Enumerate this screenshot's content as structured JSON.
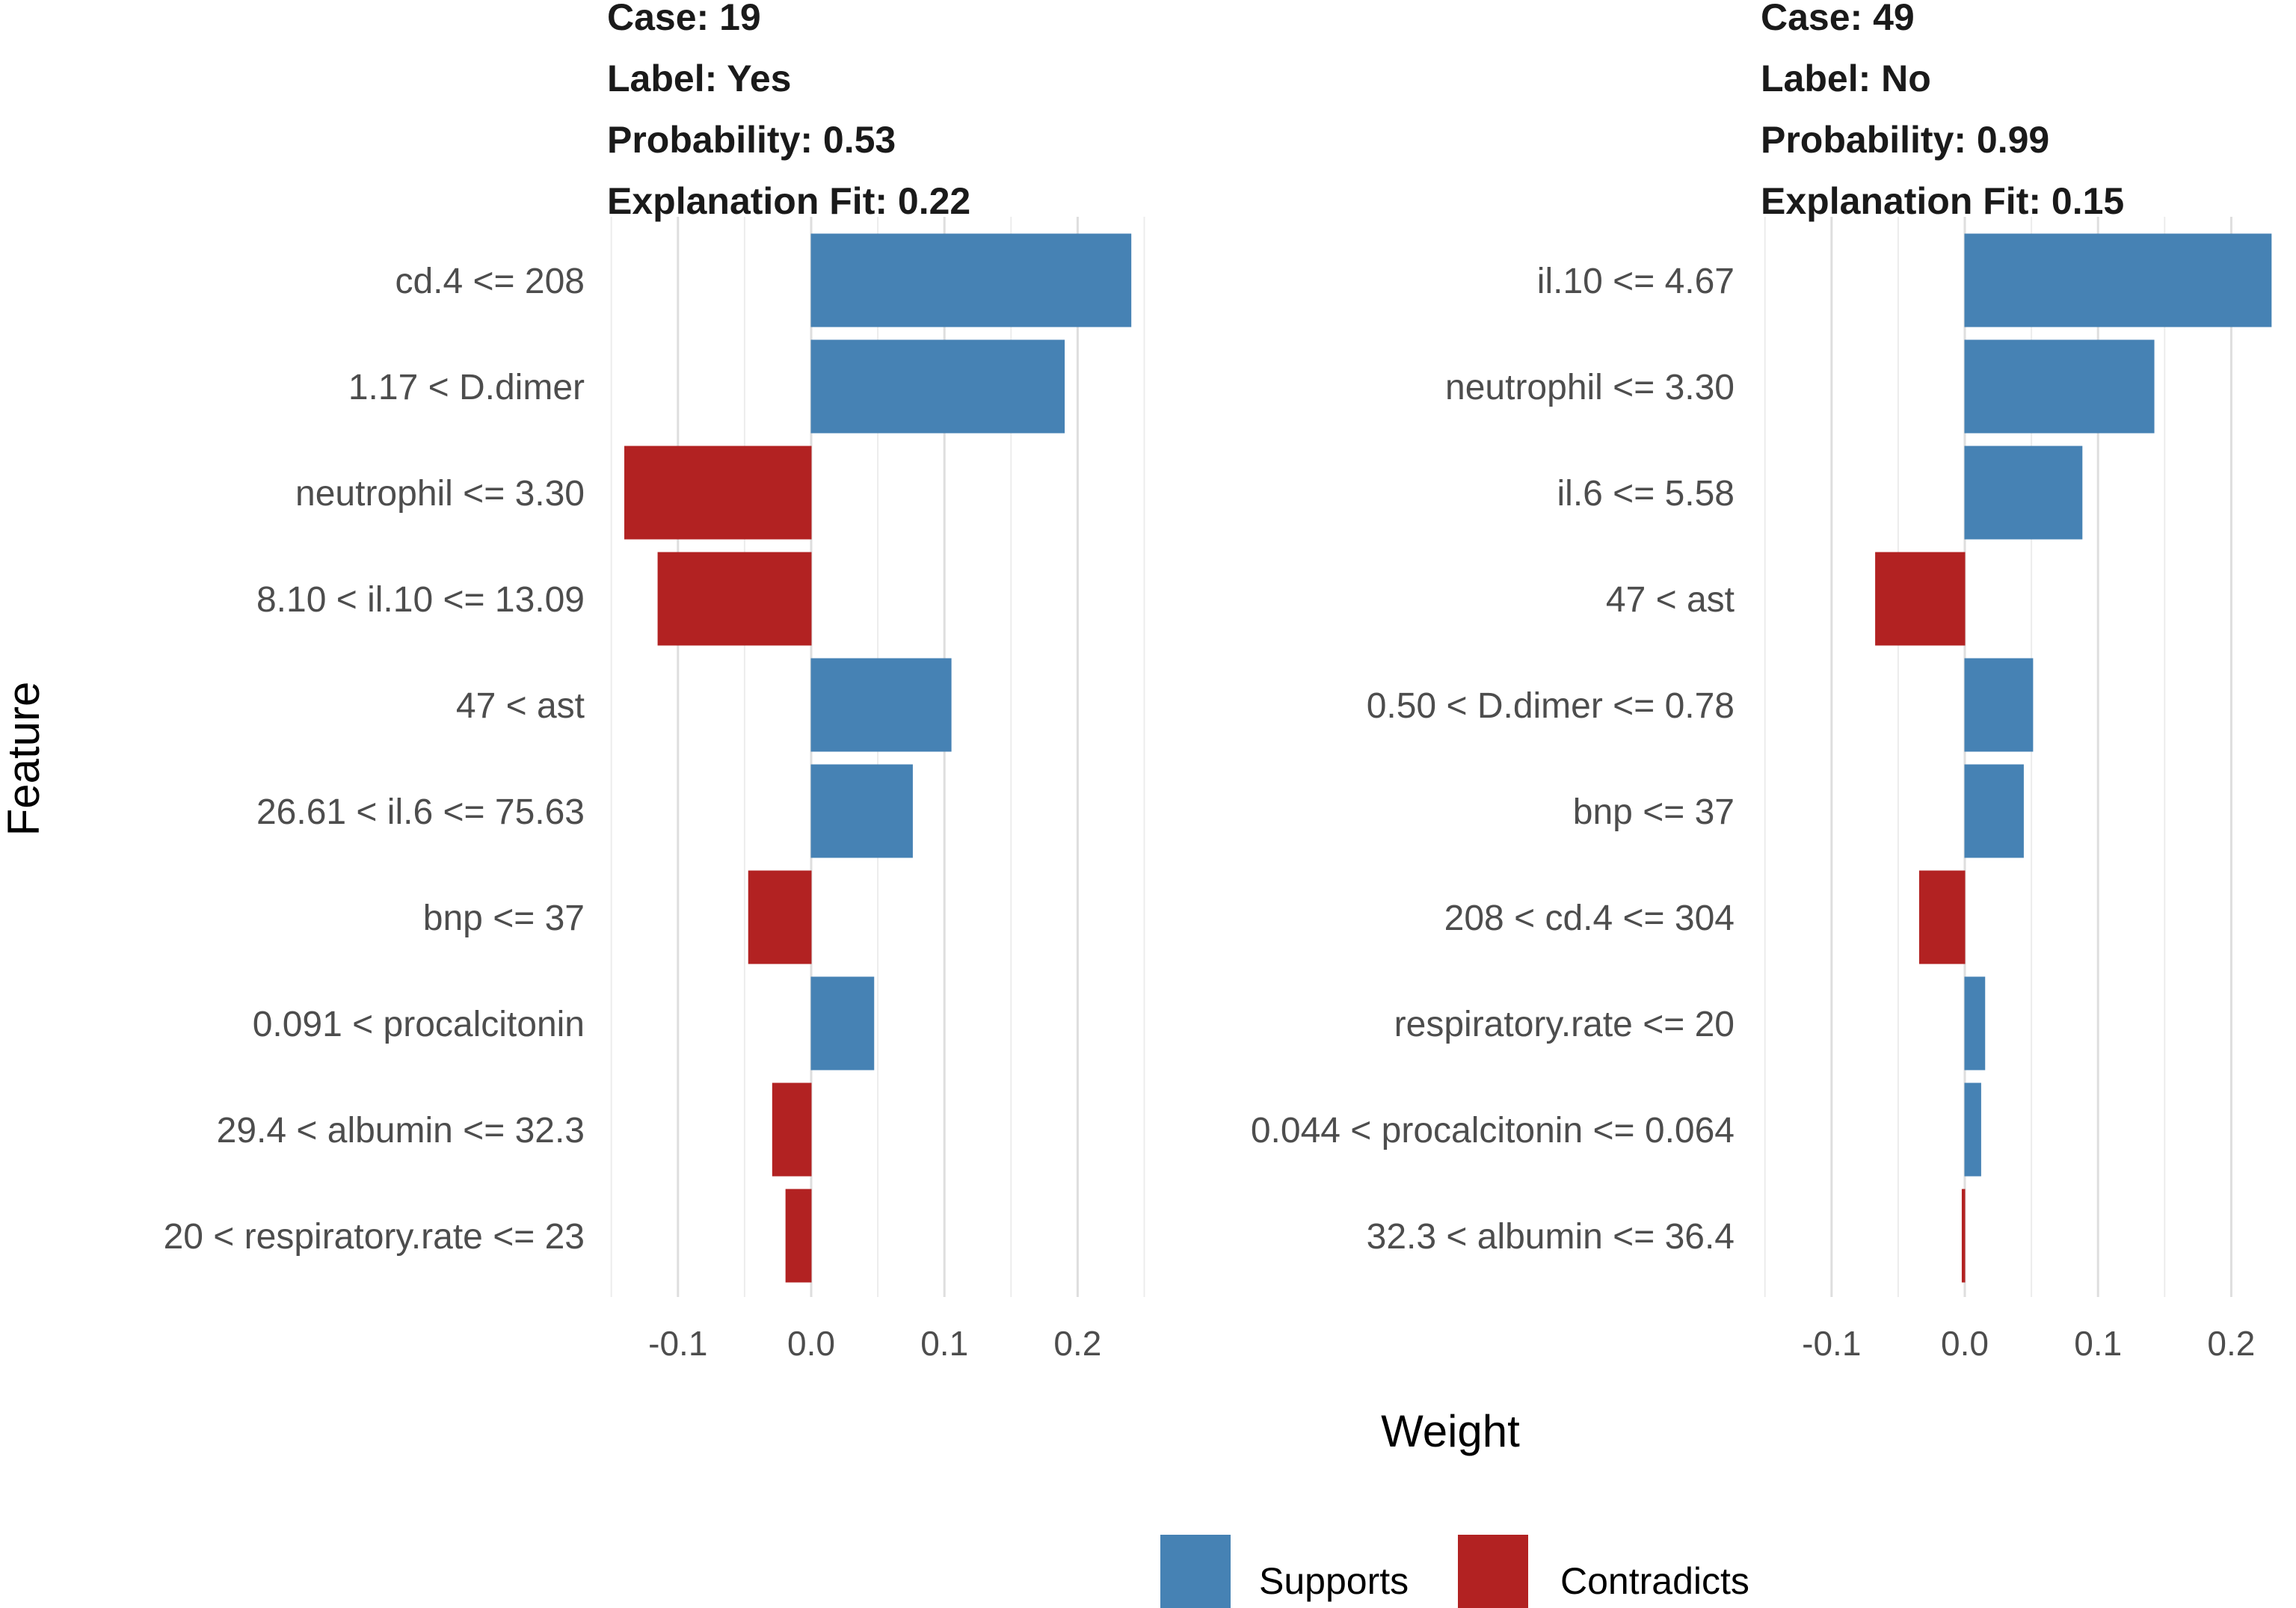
{
  "chart_data": {
    "type": "bar",
    "orientation": "horizontal",
    "shared_xlabel": "Weight",
    "shared_ylabel": "Feature",
    "xlim": [
      -0.15,
      0.25
    ],
    "xticks": [
      -0.1,
      0.0,
      0.1,
      0.2
    ],
    "xtick_labels": [
      "-0.1",
      "0.0",
      "0.1",
      "0.2"
    ],
    "grid": true,
    "legend": {
      "position": "bottom",
      "items": [
        {
          "key": "Supports",
          "label": "Supports",
          "color": "#4682B4"
        },
        {
          "key": "Contradicts",
          "label": "Contradicts",
          "color": "#B22222"
        }
      ]
    },
    "panels": [
      {
        "title_lines": [
          "Case: 19",
          "Label: Yes",
          "Probability: 0.53",
          "Explanation Fit: 0.22"
        ],
        "features": [
          "cd.4 <= 208",
          "1.17 < D.dimer",
          "neutrophil <= 3.30",
          "8.10 < il.10 <= 13.09",
          "47 < ast",
          "26.61 < il.6 <= 75.63",
          "bnp <= 37",
          "0.091 < procalcitonin",
          "29.4 < albumin <= 32.3",
          "20 < respiratory.rate <= 23"
        ],
        "weights": [
          0.24,
          0.19,
          -0.14,
          -0.115,
          0.105,
          0.076,
          -0.047,
          0.047,
          -0.029,
          -0.019
        ]
      },
      {
        "title_lines": [
          "Case: 49",
          "Label: No",
          "Probability: 0.99",
          "Explanation Fit: 0.15"
        ],
        "features": [
          "il.10 <= 4.67",
          "neutrophil <= 3.30",
          "il.6 <= 5.58",
          "47 < ast",
          "0.50 < D.dimer <= 0.78",
          "bnp <= 37",
          "208 < cd.4 <= 304",
          "respiratory.rate <= 20",
          "0.044 < procalcitonin <= 0.064",
          "32.3 < albumin <= 36.4"
        ],
        "weights": [
          0.23,
          0.142,
          0.088,
          -0.067,
          0.051,
          0.044,
          -0.034,
          0.015,
          0.012,
          -0.002
        ]
      }
    ]
  }
}
